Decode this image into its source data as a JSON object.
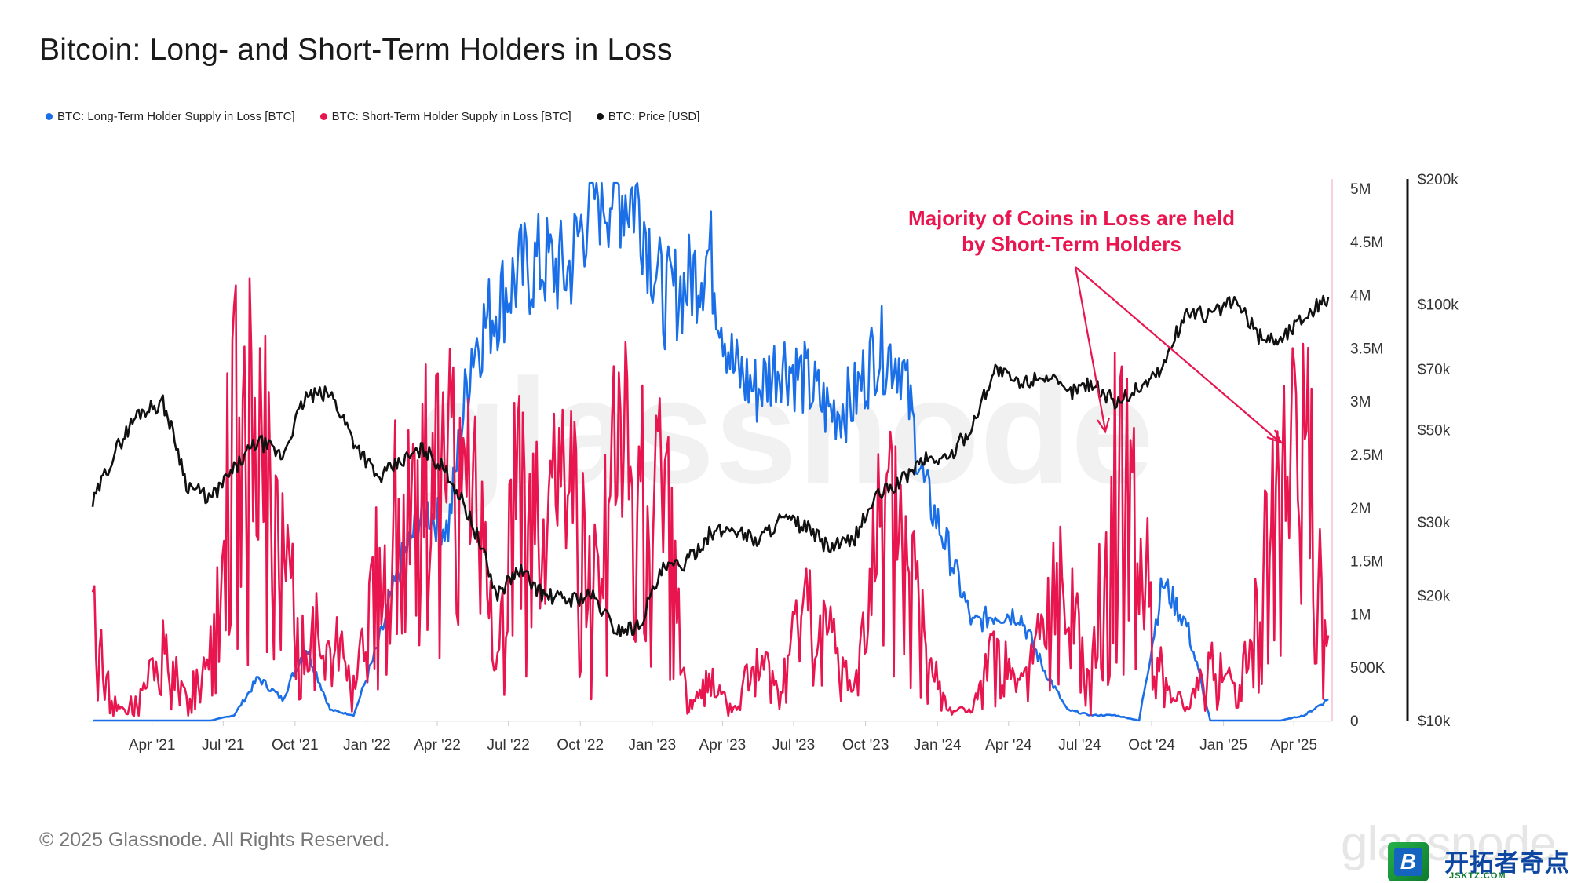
{
  "title": "Bitcoin: Long- and Short-Term Holders in Loss",
  "legend": [
    {
      "label": "BTC: Long-Term Holder Supply in Loss [BTC]",
      "color": "#1a6fe8"
    },
    {
      "label": "BTC: Short-Term Holder Supply in Loss [BTC]",
      "color": "#e8154f"
    },
    {
      "label": "BTC: Price [USD]",
      "color": "#111111"
    }
  ],
  "annotation": {
    "line1": "Majority of Coins in Loss are held",
    "line2": "by Short-Term Holders",
    "color": "#e8154f"
  },
  "footer": "© 2025 Glassnode. All Rights Reserved.",
  "watermark": "glassnode",
  "badge": {
    "letter": "B",
    "text": "开拓者奇点",
    "sub": "JSKTZ.COM"
  },
  "chart_data": {
    "type": "line",
    "x_ticks": [
      "Apr '21",
      "Jul '21",
      "Oct '21",
      "Jan '22",
      "Apr '22",
      "Jul '22",
      "Oct '22",
      "Jan '23",
      "Apr '23",
      "Jul '23",
      "Oct '23",
      "Jan '24",
      "Apr '24",
      "Jul '24",
      "Oct '24",
      "Jan '25",
      "Apr '25"
    ],
    "y_supply_ticks": [
      "0",
      "500K",
      "1M",
      "1.5M",
      "2M",
      "2.5M",
      "3M",
      "3.5M",
      "4M",
      "4.5M",
      "5M"
    ],
    "y_supply_range": [
      0,
      5000000
    ],
    "y_price_ticks": [
      "$10k",
      "$20k",
      "$30k",
      "$50k",
      "$70k",
      "$100k",
      "$200k"
    ],
    "y_price_range": [
      10000,
      200000
    ],
    "y_price_scale": "log",
    "grid": false,
    "x_dates": [
      "2021-01",
      "2021-02",
      "2021-03",
      "2021-04",
      "2021-05",
      "2021-06",
      "2021-07",
      "2021-08",
      "2021-09",
      "2021-10",
      "2021-11",
      "2021-12",
      "2022-01",
      "2022-02",
      "2022-03",
      "2022-04",
      "2022-05",
      "2022-06",
      "2022-07",
      "2022-08",
      "2022-09",
      "2022-10",
      "2022-11",
      "2022-12",
      "2023-01",
      "2023-02",
      "2023-03",
      "2023-04",
      "2023-05",
      "2023-06",
      "2023-07",
      "2023-08",
      "2023-09",
      "2023-10",
      "2023-11",
      "2023-12",
      "2024-01",
      "2024-02",
      "2024-03",
      "2024-04",
      "2024-05",
      "2024-06",
      "2024-07",
      "2024-08",
      "2024-09",
      "2024-10",
      "2024-11",
      "2024-12",
      "2025-01",
      "2025-02",
      "2025-03",
      "2025-04",
      "2025-05"
    ],
    "series": [
      {
        "name": "BTC: Long-Term Holder Supply in Loss [BTC]",
        "color": "#1a6fe8",
        "axis": "supply",
        "values": [
          0,
          0,
          0,
          0,
          0,
          0,
          50000,
          400000,
          200000,
          700000,
          100000,
          50000,
          700000,
          1500000,
          2000000,
          1800000,
          3500000,
          3900000,
          4200000,
          4300000,
          4200000,
          4950000,
          5000000,
          4900000,
          3950000,
          4100000,
          4400000,
          3300000,
          3100000,
          3400000,
          3200000,
          2900000,
          3000000,
          3500000,
          3400000,
          2200000,
          1600000,
          900000,
          1000000,
          1000000,
          500000,
          100000,
          50000,
          50000,
          0,
          1300000,
          900000,
          0,
          0,
          0,
          0,
          50000,
          200000
        ]
      },
      {
        "name": "BTC: Short-Term Holder Supply in Loss [BTC]",
        "color": "#e8154f",
        "axis": "supply",
        "values": [
          1000000,
          100000,
          200000,
          700000,
          200000,
          800000,
          2900000,
          2900000,
          1500000,
          700000,
          1000000,
          300000,
          1500000,
          2400000,
          2300000,
          2500000,
          2400000,
          500000,
          2500000,
          1800000,
          2500000,
          1200000,
          2500000,
          2600000,
          2400000,
          100000,
          400000,
          100000,
          600000,
          300000,
          1200000,
          800000,
          300000,
          1800000,
          2000000,
          900000,
          100000,
          100000,
          700000,
          300000,
          900000,
          1500000,
          300000,
          2700000,
          2400000,
          400000,
          100000,
          600000,
          300000,
          1200000,
          2500000,
          2700000,
          800000
        ]
      },
      {
        "name": "BTC: Price [USD]",
        "color": "#111111",
        "axis": "price",
        "values": [
          33000,
          45000,
          55000,
          58000,
          37000,
          34000,
          40000,
          47000,
          43000,
          60000,
          61000,
          47000,
          38000,
          42000,
          45000,
          39000,
          30000,
          20000,
          23000,
          20000,
          19500,
          20000,
          16500,
          16800,
          23000,
          24000,
          28000,
          29000,
          27000,
          30500,
          29300,
          26000,
          27000,
          34500,
          37500,
          42500,
          42500,
          51000,
          70000,
          64000,
          68000,
          61000,
          65000,
          58000,
          63000,
          70000,
          96000,
          94000,
          102000,
          84000,
          82000,
          94000,
          104000
        ]
      }
    ]
  }
}
